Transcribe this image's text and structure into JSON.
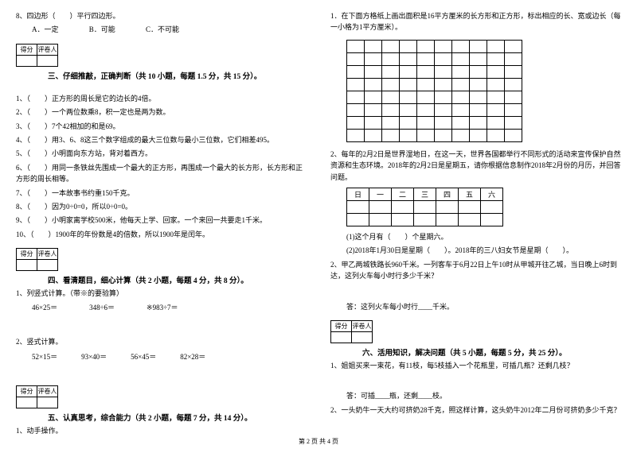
{
  "q8": {
    "stem": "8、四边形（　　）平行四边形。",
    "optA": "A．一定",
    "optB": "B．可能",
    "optC": "C．不可能"
  },
  "scoreLabels": {
    "score": "得分",
    "grader": "评卷人"
  },
  "section3": {
    "title": "三、仔细推敲，正确判断（共 10 小题，每题 1.5 分，共 15 分）。"
  },
  "s3": {
    "q1": "1、（　　）正方形的周长是它的边长的4倍。",
    "q2": "2、（　　）一个两位数乘8，积一定也是两为数。",
    "q3": "3、（　　）7个42相加的和是69。",
    "q4": "4、（　　）用3、6、8这三个数字组成的最大三位数与最小三位数，它们相差495。",
    "q5": "5、（　　）小明面向东方站，背对着西方。",
    "q6": "6、（　　）用同一条铁丝先围成一个最大的正方形，再围成一个最大的长方形，长方形和正方形的周长相等。",
    "q7": "7、（　　）一本故事书约重150千克。",
    "q8": "8、（　　）因为0÷0=0，所以0÷0=0。",
    "q9": "9、（　　）小明家离学校500米，他每天上学、回家。一个来回一共要走1千米。",
    "q10": "10、（　　）1900年的年份数是4的倍数，所以1900年是闰年。"
  },
  "section4": {
    "title": "四、看清题目，细心计算（共 2 小题，每题 4 分，共 8 分）。"
  },
  "s4": {
    "q1": "1、列竖式计算。（带※的要验算）",
    "q1a": "46×25＝",
    "q1b": "348÷6＝",
    "q1c": "※983÷7＝",
    "q2": "2、竖式计算。",
    "q2a": "52×15＝",
    "q2b": "93×40＝",
    "q2c": "56×45＝",
    "q2d": "82×28＝"
  },
  "section5": {
    "title": "五、认真思考，综合能力（共 2 小题，每题 7 分，共 14 分）。"
  },
  "s5": {
    "q1": "1、动手操作。"
  },
  "right": {
    "q1": "1．在下面方格纸上画出面积是16平方厘米的长方形和正方形，标出相应的长、宽或边长（每一小格为1平方厘米）。",
    "q2": "2、每年的2月2日是世界湿地日，在这一天，世界各国都举行不同形式的活动来宣传保护自然资源和生态环境。2018年的2月2日是星期五，请你根据信息制作2018年2月份的月历，并回答问题。",
    "cal": {
      "d0": "日",
      "d1": "一",
      "d2": "二",
      "d3": "三",
      "d4": "四",
      "d5": "五",
      "d6": "六"
    },
    "q2a": "(1)这个月有（　　）个星期六。",
    "q2b": "(2)2018年1月30日是星期（　　）。2018年的三八妇女节是星期（　　）。",
    "q3": "2、甲乙两城铁路长960千米。一列客车于6月22日上午10时从甲城开往乙城，当日晚上6时到达，这列火车每小时行多少千米？",
    "q3ans": "答：这列火车每小时行____千米。"
  },
  "section6": {
    "title": "六、活用知识，解决问题（共 5 小题，每题 5 分，共 25 分）。"
  },
  "s6": {
    "q1": "1、姐姐买来一束花，有11枝，每5枝插入一个花瓶里，可插几瓶？还剩几枝？",
    "q1ans": "答：可插____瓶，还剩____枝。",
    "q2": "2、一头奶牛一天大约可挤奶28千克，照这样计算，这头奶牛2012年二月份可挤奶多少千克？"
  },
  "footer": "第 2 页  共 4 页"
}
